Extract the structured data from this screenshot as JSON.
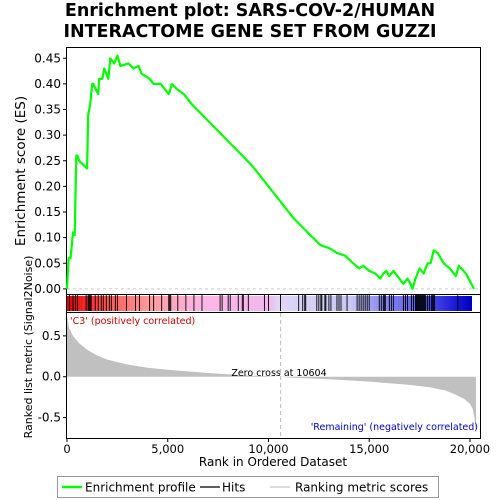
{
  "title_line1": "Enrichment plot: SARS-COV-2/HUMAN",
  "title_line2": "INTERACTOME GENE SET FROM GUZZI",
  "colors": {
    "enrichment_line": "#00ff00",
    "hits": "#000000",
    "ranking_fill": "#c0c0c0",
    "positive_label": "#cc0000",
    "negative_label": "#0000cc"
  },
  "chart_data": {
    "type": "line",
    "top_panel": {
      "ylabel": "Enrichment score (ES)",
      "ylim": [
        -0.01,
        0.47
      ],
      "yticks": [
        "0.00",
        "0.05",
        "0.10",
        "0.15",
        "0.20",
        "0.25",
        "0.30",
        "0.35",
        "0.40",
        "0.45"
      ],
      "series": [
        {
          "name": "Enrichment profile",
          "x": [
            0,
            80,
            180,
            300,
            380,
            460,
            520,
            600,
            1000,
            1050,
            1150,
            1250,
            1300,
            1550,
            1600,
            1750,
            1850,
            2050,
            2150,
            2350,
            2500,
            2650,
            3050,
            3300,
            3550,
            3700,
            4100,
            4300,
            4650,
            5050,
            5100,
            5200,
            5450,
            5800,
            6200,
            6700,
            7200,
            7700,
            8200,
            8700,
            9200,
            9700,
            10200,
            10700,
            11200,
            11700,
            12200,
            12600,
            13000,
            13400,
            13800,
            14200,
            14500,
            14700,
            15000,
            15300,
            15550,
            15700,
            15850,
            16000,
            16200,
            16400,
            16700,
            16900,
            17050,
            17150,
            17300,
            17500,
            17700,
            17900,
            18050,
            18200,
            18400,
            18700,
            19000,
            19300,
            19450,
            19800,
            20200
          ],
          "y": [
            0.0,
            0.06,
            0.06,
            0.11,
            0.105,
            0.26,
            0.26,
            0.25,
            0.235,
            0.34,
            0.36,
            0.4,
            0.4,
            0.38,
            0.41,
            0.41,
            0.43,
            0.41,
            0.45,
            0.44,
            0.455,
            0.435,
            0.44,
            0.43,
            0.435,
            0.42,
            0.41,
            0.4,
            0.4,
            0.38,
            0.385,
            0.4,
            0.39,
            0.38,
            0.36,
            0.34,
            0.32,
            0.3,
            0.28,
            0.26,
            0.24,
            0.215,
            0.19,
            0.165,
            0.14,
            0.12,
            0.1,
            0.085,
            0.08,
            0.07,
            0.065,
            0.05,
            0.04,
            0.045,
            0.035,
            0.03,
            0.02,
            0.03,
            0.035,
            0.025,
            0.035,
            0.025,
            0.01,
            0.02,
            0.01,
            0.0,
            0.02,
            0.04,
            0.03,
            0.05,
            0.05,
            0.075,
            0.07,
            0.05,
            0.04,
            0.025,
            0.045,
            0.03,
            0.0
          ]
        }
      ],
      "hits": [
        120,
        300,
        420,
        520,
        950,
        1050,
        1100,
        1150,
        1200,
        1400,
        1550,
        1700,
        1800,
        1950,
        2100,
        2200,
        2400,
        2500,
        2950,
        3400,
        3600,
        4100,
        4300,
        4700,
        5050,
        5100,
        5150,
        5500,
        5900,
        6300,
        6700,
        7600,
        7700,
        8000,
        8100,
        8500,
        8700,
        8750,
        9000,
        9800,
        10000,
        10600,
        11500,
        11700,
        11800,
        11850,
        12400,
        12500,
        12600,
        12650,
        12800,
        12850,
        13000,
        13100,
        13400,
        13500,
        13600,
        13900,
        14400,
        14500,
        14600,
        14700,
        14800,
        14900,
        15000,
        15500,
        15600,
        15700,
        15750,
        15800,
        16000,
        16100,
        16200,
        16700,
        16800,
        16900,
        17100,
        17200,
        17300,
        17350,
        17400,
        17450,
        17500,
        17550,
        17600,
        17650,
        17700,
        17750,
        17800,
        17900,
        18000,
        18100,
        18150,
        18200,
        18250,
        19400
      ]
    },
    "bottom_panel": {
      "ylabel": "Ranked list metric (Signal2Noise)",
      "xlabel": "Rank in Ordered Dataset",
      "ylim": [
        -0.75,
        0.78
      ],
      "yticks": [
        "-0.5",
        "0.0",
        "0.5"
      ],
      "xticks": [
        "0",
        "5,000",
        "10,000",
        "15,000",
        "20,000"
      ],
      "xlim": [
        0,
        20500
      ],
      "n_genes": 20300,
      "zero_cross_label": "Zero cross at 10604",
      "zero_cross_rank": 10604,
      "positive_label": "'C3' (positively correlated)",
      "negative_label": "'Remaining' (negatively correlated)",
      "metric_curve": {
        "x": [
          0,
          100,
          300,
          600,
          1000,
          1500,
          2000,
          3000,
          4000,
          5000,
          6000,
          7000,
          8000,
          9000,
          10000,
          10604,
          11000,
          12000,
          13000,
          14000,
          15000,
          16000,
          17000,
          18000,
          18800,
          19300,
          19700,
          20000,
          20150,
          20250,
          20300
        ],
        "y": [
          0.75,
          0.6,
          0.5,
          0.41,
          0.33,
          0.26,
          0.21,
          0.15,
          0.11,
          0.085,
          0.065,
          0.045,
          0.03,
          0.015,
          0.005,
          0.0,
          -0.01,
          -0.02,
          -0.03,
          -0.045,
          -0.06,
          -0.08,
          -0.1,
          -0.13,
          -0.17,
          -0.22,
          -0.27,
          -0.33,
          -0.4,
          -0.55,
          -0.7
        ]
      }
    },
    "legend": [
      {
        "name": "Enrichment profile",
        "style": "line-green"
      },
      {
        "name": "Hits",
        "style": "line-black"
      },
      {
        "name": "Ranking metric scores",
        "style": "line-gray"
      }
    ]
  }
}
